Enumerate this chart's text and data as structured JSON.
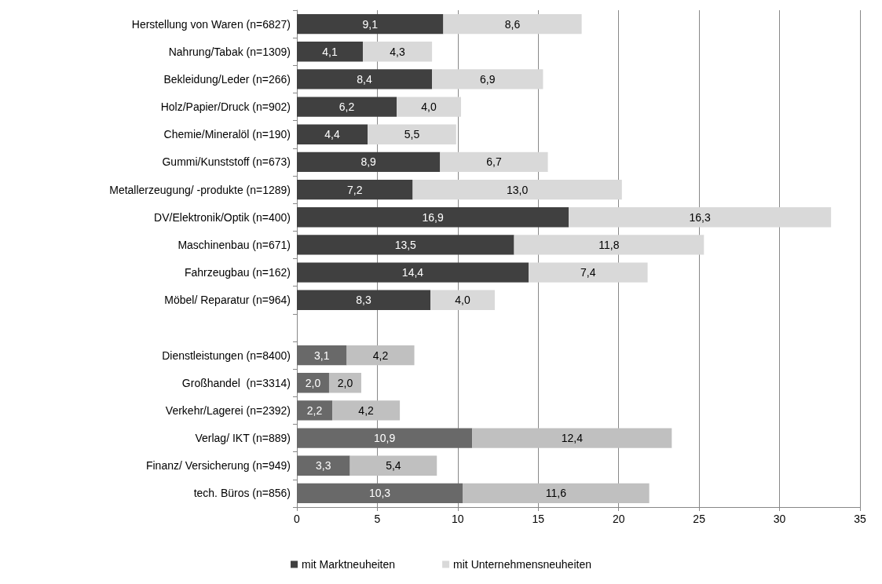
{
  "chart_data": {
    "type": "bar",
    "orientation": "horizontal",
    "stacked": true,
    "categories": [
      "Herstellung von Waren (n=6827)",
      "Nahrung/Tabak (n=1309)",
      "Bekleidung/Leder (n=266)",
      "Holz/Papier/Druck (n=902)",
      "Chemie/Mineralöl (n=190)",
      "Gummi/Kunststoff (n=673)",
      "Metallerzeugung/ -produkte (n=1289)",
      "DV/Elektronik/Optik (n=400)",
      "Maschinenbau (n=671)",
      "Fahrzeugbau (n=162)",
      "Möbel/ Reparatur (n=964)",
      null,
      "Dienstleistungen (n=8400)",
      "Großhandel  (n=3314)",
      "Verkehr/Lagerei (n=2392)",
      "Verlag/ IKT (n=889)",
      "Finanz/ Versicherung (n=949)",
      "tech. Büros (n=856)"
    ],
    "series": [
      {
        "name": "mit Marktneuheiten",
        "color": "#404040",
        "colors": [
          "#404040",
          "#404040",
          "#404040",
          "#404040",
          "#404040",
          "#404040",
          "#404040",
          "#404040",
          "#404040",
          "#404040",
          "#404040",
          null,
          "#696969",
          "#696969",
          "#696969",
          "#696969",
          "#696969",
          "#696969"
        ],
        "values": [
          9.1,
          4.1,
          8.4,
          6.2,
          4.4,
          8.9,
          7.2,
          16.9,
          13.5,
          14.4,
          8.3,
          null,
          3.1,
          2.0,
          2.2,
          10.9,
          3.3,
          10.3
        ],
        "value_labels": [
          "9,1",
          "4,1",
          "8,4",
          "6,2",
          "4,4",
          "8,9",
          "7,2",
          "16,9",
          "13,5",
          "14,4",
          "8,3",
          null,
          "3,1",
          "2,0",
          "2,2",
          "10,9",
          "3,3",
          "10,3"
        ]
      },
      {
        "name": "mit Unternehmensneuheiten",
        "color": "#d9d9d9",
        "colors": [
          "#d9d9d9",
          "#d9d9d9",
          "#d9d9d9",
          "#d9d9d9",
          "#d9d9d9",
          "#d9d9d9",
          "#d9d9d9",
          "#d9d9d9",
          "#d9d9d9",
          "#d9d9d9",
          "#d9d9d9",
          null,
          "#c0c0c0",
          "#c0c0c0",
          "#c0c0c0",
          "#c0c0c0",
          "#c0c0c0",
          "#c0c0c0"
        ],
        "values": [
          8.6,
          4.3,
          6.9,
          4.0,
          5.5,
          6.7,
          13.0,
          16.3,
          11.8,
          7.4,
          4.0,
          null,
          4.2,
          2.0,
          4.2,
          12.4,
          5.4,
          11.6
        ],
        "value_labels": [
          "8,6",
          "4,3",
          "6,9",
          "4,0",
          "5,5",
          "6,7",
          "13,0",
          "16,3",
          "11,8",
          "7,4",
          "4,0",
          null,
          "4,2",
          "2,0",
          "4,2",
          "12,4",
          "5,4",
          "11,6"
        ]
      }
    ],
    "xlim": [
      0,
      35
    ],
    "xticks": [
      0,
      5,
      10,
      15,
      20,
      25,
      30,
      35
    ],
    "grid": "x",
    "legend": "bottom"
  }
}
